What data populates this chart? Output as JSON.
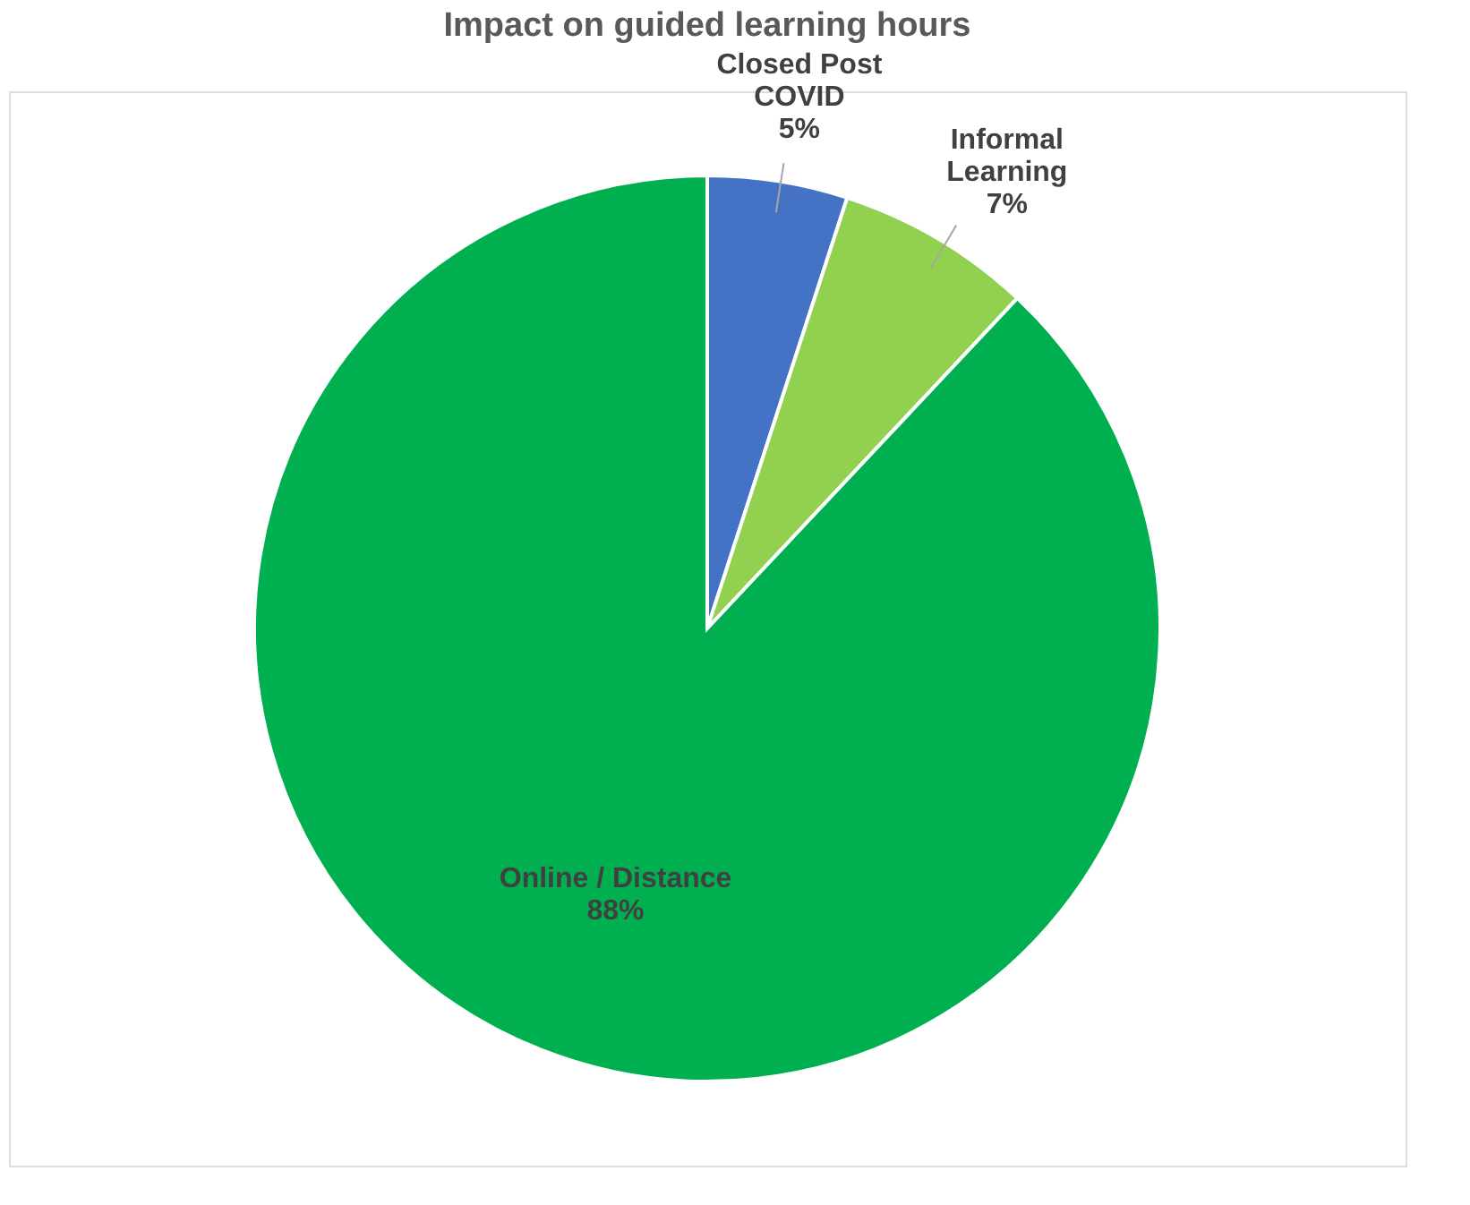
{
  "chart_data": {
    "type": "pie",
    "title": "Impact on guided learning hours",
    "categories": [
      "Closed Post COVID",
      "Informal Learning",
      "Online / Distance"
    ],
    "values": [
      5,
      7,
      88
    ],
    "colors": [
      "#4472c4",
      "#92d050",
      "#00b050"
    ],
    "value_labels": [
      "5%",
      "7%",
      "88%"
    ],
    "legend": false
  }
}
